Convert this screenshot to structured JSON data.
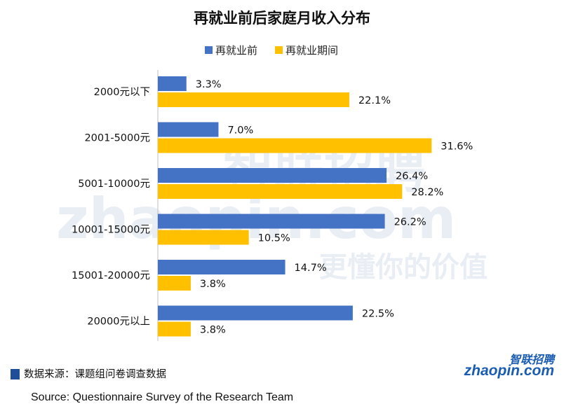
{
  "chart_data": {
    "type": "bar",
    "orientation": "horizontal",
    "title": "再就业前后家庭月收入分布",
    "categories": [
      "2000元以下",
      "2001-5000元",
      "5001-10000元",
      "10001-15000元",
      "15001-20000元",
      "20000元以上"
    ],
    "series": [
      {
        "name": "再就业前",
        "values": [
          3.3,
          7.0,
          26.4,
          26.2,
          14.7,
          22.5
        ],
        "labels": [
          "3.3%",
          "7.0%",
          "26.4%",
          "26.2%",
          "14.7%",
          "22.5%"
        ],
        "color": "#4472c4"
      },
      {
        "name": "再就业期间",
        "values": [
          22.1,
          31.6,
          28.2,
          10.5,
          3.8,
          3.8
        ],
        "labels": [
          "22.1%",
          "31.6%",
          "28.2%",
          "10.5%",
          "3.8%",
          "3.8%"
        ],
        "color": "#ffc000"
      }
    ],
    "xlim": [
      0,
      35
    ],
    "xlabel": "",
    "ylabel": "",
    "grid": false,
    "legend_position": "top-center"
  },
  "watermark": {
    "brand_cn": "智联招聘",
    "brand_en": "zhaopin.com",
    "slogan": "更懂你的价值"
  },
  "source": {
    "cn": "数据来源：课题组问卷调查数据",
    "en": "Source: Questionnaire Survey of the Research Team"
  },
  "logo": {
    "cn": "智联招聘",
    "en": "zhaopin.com",
    "brand_color": "#1b5cb3"
  }
}
